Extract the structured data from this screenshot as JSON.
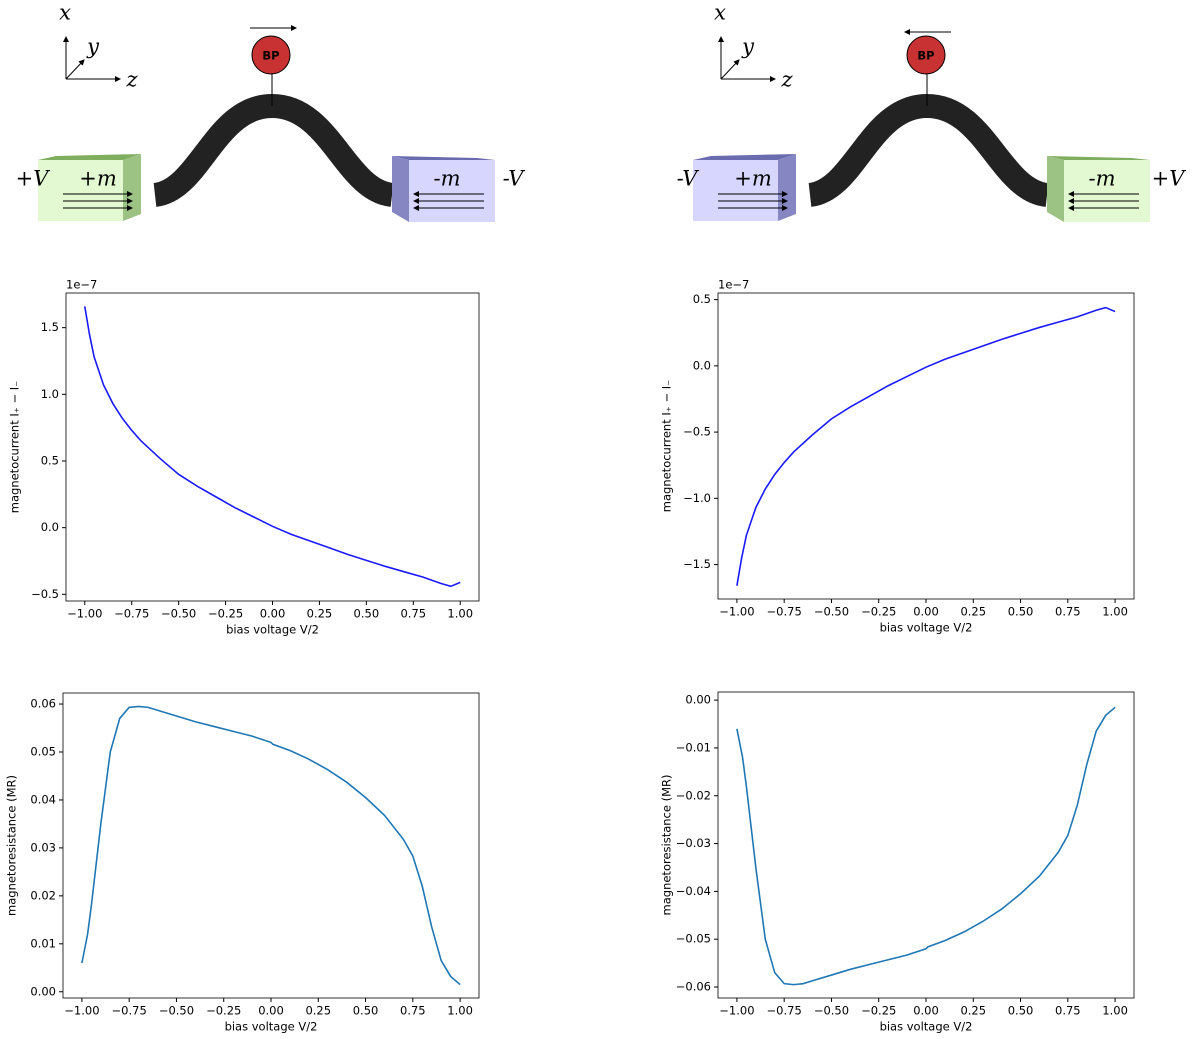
{
  "diagrams": [
    {
      "axis_x": "x",
      "axis_y": "y",
      "axis_z": "z",
      "probe": "BP",
      "left_voltage": "+V",
      "left_moment": "+m",
      "right_moment": "-m",
      "right_voltage": "-V"
    },
    {
      "axis_x": "x",
      "axis_y": "y",
      "axis_z": "z",
      "probe": "BP",
      "left_voltage": "-V",
      "left_moment": "+m",
      "right_moment": "-m",
      "right_voltage": "+V"
    }
  ],
  "chart_data": [
    {
      "type": "line",
      "x_label": "bias voltage V/2",
      "y_label": "magnetocurrent I₊ − I₋",
      "offset_text": "1e−7",
      "color": "#1a1aff",
      "x": [
        -1,
        -0.975,
        -0.95,
        -0.9,
        -0.85,
        -0.8,
        -0.75,
        -0.7,
        -0.6,
        -0.5,
        -0.4,
        -0.3,
        -0.2,
        -0.1,
        0,
        0.1,
        0.2,
        0.3,
        0.4,
        0.5,
        0.6,
        0.7,
        0.8,
        0.9,
        0.95,
        1.0
      ],
      "values": [
        1.66,
        1.45,
        1.28,
        1.07,
        0.93,
        0.82,
        0.73,
        0.65,
        0.52,
        0.4,
        0.31,
        0.23,
        0.15,
        0.08,
        0.01,
        -0.05,
        -0.1,
        -0.15,
        -0.2,
        -0.245,
        -0.29,
        -0.33,
        -0.37,
        -0.42,
        -0.44,
        -0.41
      ],
      "xlim": [
        -1.1,
        1.1
      ],
      "ylim": [
        -0.55,
        1.76
      ],
      "xticks": [
        {
          "value": -1,
          "label": "−1.00"
        },
        {
          "value": -0.75,
          "label": "−0.75"
        },
        {
          "value": -0.5,
          "label": "−0.50"
        },
        {
          "value": -0.25,
          "label": "−0.25"
        },
        {
          "value": 0,
          "label": "0.00"
        },
        {
          "value": 0.25,
          "label": "0.25"
        },
        {
          "value": 0.5,
          "label": "0.50"
        },
        {
          "value": 0.75,
          "label": "0.75"
        },
        {
          "value": 1,
          "label": "1.00"
        }
      ],
      "yticks": [
        {
          "value": -0.5,
          "label": "−0.5"
        },
        {
          "value": 0,
          "label": "0.0"
        },
        {
          "value": 0.5,
          "label": "0.5"
        },
        {
          "value": 1,
          "label": "1.0"
        },
        {
          "value": 1.5,
          "label": "1.5"
        }
      ]
    },
    {
      "type": "line",
      "x_label": "bias voltage V/2",
      "y_label": "magnetocurrent I₊ − I₋",
      "offset_text": "1e−7",
      "color": "#1a1aff",
      "x": [
        -1,
        -0.975,
        -0.95,
        -0.9,
        -0.85,
        -0.8,
        -0.75,
        -0.7,
        -0.6,
        -0.5,
        -0.4,
        -0.3,
        -0.2,
        -0.1,
        0,
        0.1,
        0.2,
        0.3,
        0.4,
        0.5,
        0.6,
        0.7,
        0.8,
        0.9,
        0.95,
        1.0
      ],
      "values": [
        -1.66,
        -1.45,
        -1.28,
        -1.07,
        -0.93,
        -0.82,
        -0.73,
        -0.65,
        -0.52,
        -0.4,
        -0.31,
        -0.23,
        -0.15,
        -0.08,
        -0.01,
        0.05,
        0.1,
        0.15,
        0.2,
        0.245,
        0.29,
        0.33,
        0.37,
        0.42,
        0.44,
        0.41
      ],
      "xlim": [
        -1.1,
        1.1
      ],
      "ylim": [
        -1.76,
        0.55
      ],
      "xticks": [
        {
          "value": -1,
          "label": "−1.00"
        },
        {
          "value": -0.75,
          "label": "−0.75"
        },
        {
          "value": -0.5,
          "label": "−0.50"
        },
        {
          "value": -0.25,
          "label": "−0.25"
        },
        {
          "value": 0,
          "label": "0.00"
        },
        {
          "value": 0.25,
          "label": "0.25"
        },
        {
          "value": 0.5,
          "label": "0.50"
        },
        {
          "value": 0.75,
          "label": "0.75"
        },
        {
          "value": 1,
          "label": "1.00"
        }
      ],
      "yticks": [
        {
          "value": -1.5,
          "label": "−1.5"
        },
        {
          "value": -1,
          "label": "−1.0"
        },
        {
          "value": -0.5,
          "label": "−0.5"
        },
        {
          "value": 0,
          "label": "0.0"
        },
        {
          "value": 0.5,
          "label": "0.5"
        }
      ]
    },
    {
      "type": "line",
      "x_label": "bias voltage V/2",
      "y_label": "magnetoresistance (MR)",
      "color": "#1f77b4",
      "x": [
        -1,
        -0.97,
        -0.95,
        -0.9,
        -0.85,
        -0.8,
        -0.75,
        -0.7,
        -0.65,
        -0.6,
        -0.5,
        -0.4,
        -0.3,
        -0.2,
        -0.1,
        0,
        0.01,
        0.1,
        0.2,
        0.3,
        0.4,
        0.5,
        0.6,
        0.7,
        0.75,
        0.8,
        0.85,
        0.9,
        0.95,
        1.0
      ],
      "values": [
        0.006,
        0.012,
        0.018,
        0.035,
        0.05,
        0.057,
        0.0593,
        0.0595,
        0.0593,
        0.0587,
        0.0575,
        0.0563,
        0.0553,
        0.0543,
        0.0533,
        0.052,
        0.0516,
        0.0503,
        0.0485,
        0.0463,
        0.0437,
        0.0405,
        0.0368,
        0.0318,
        0.0283,
        0.022,
        0.0135,
        0.0065,
        0.0032,
        0.0015
      ],
      "xlim": [
        -1.1,
        1.1
      ],
      "ylim": [
        -0.0013,
        0.0623
      ],
      "xticks": [
        {
          "value": -1,
          "label": "−1.00"
        },
        {
          "value": -0.75,
          "label": "−0.75"
        },
        {
          "value": -0.5,
          "label": "−0.50"
        },
        {
          "value": -0.25,
          "label": "−0.25"
        },
        {
          "value": 0,
          "label": "0.00"
        },
        {
          "value": 0.25,
          "label": "0.25"
        },
        {
          "value": 0.5,
          "label": "0.50"
        },
        {
          "value": 0.75,
          "label": "0.75"
        },
        {
          "value": 1,
          "label": "1.00"
        }
      ],
      "yticks": [
        {
          "value": 0,
          "label": "0.00"
        },
        {
          "value": 0.01,
          "label": "0.01"
        },
        {
          "value": 0.02,
          "label": "0.02"
        },
        {
          "value": 0.03,
          "label": "0.03"
        },
        {
          "value": 0.04,
          "label": "0.04"
        },
        {
          "value": 0.05,
          "label": "0.05"
        },
        {
          "value": 0.06,
          "label": "0.06"
        }
      ]
    },
    {
      "type": "line",
      "x_label": "bias voltage V/2",
      "y_label": "magnetoresistance (MR)",
      "color": "#1f77b4",
      "x": [
        -1,
        -0.97,
        -0.95,
        -0.9,
        -0.85,
        -0.8,
        -0.75,
        -0.7,
        -0.65,
        -0.6,
        -0.5,
        -0.4,
        -0.3,
        -0.2,
        -0.1,
        0,
        0.01,
        0.1,
        0.2,
        0.3,
        0.4,
        0.5,
        0.6,
        0.7,
        0.75,
        0.8,
        0.85,
        0.9,
        0.95,
        1.0
      ],
      "values": [
        -0.006,
        -0.012,
        -0.018,
        -0.035,
        -0.05,
        -0.057,
        -0.0593,
        -0.0595,
        -0.0593,
        -0.0587,
        -0.0575,
        -0.0563,
        -0.0553,
        -0.0543,
        -0.0533,
        -0.052,
        -0.0516,
        -0.0503,
        -0.0485,
        -0.0463,
        -0.0437,
        -0.0405,
        -0.0368,
        -0.0318,
        -0.0283,
        -0.022,
        -0.0135,
        -0.0065,
        -0.0032,
        -0.0015
      ],
      "xlim": [
        -1.1,
        1.1
      ],
      "ylim": [
        -0.0623,
        0.0017
      ],
      "xticks": [
        {
          "value": -1,
          "label": "−1.00"
        },
        {
          "value": -0.75,
          "label": "−0.75"
        },
        {
          "value": -0.5,
          "label": "−0.50"
        },
        {
          "value": -0.25,
          "label": "−0.25"
        },
        {
          "value": 0,
          "label": "0.00"
        },
        {
          "value": 0.25,
          "label": "0.25"
        },
        {
          "value": 0.5,
          "label": "0.50"
        },
        {
          "value": 0.75,
          "label": "0.75"
        },
        {
          "value": 1,
          "label": "1.00"
        }
      ],
      "yticks": [
        {
          "value": -0.06,
          "label": "−0.06"
        },
        {
          "value": -0.05,
          "label": "−0.05"
        },
        {
          "value": -0.04,
          "label": "−0.04"
        },
        {
          "value": -0.03,
          "label": "−0.03"
        },
        {
          "value": -0.02,
          "label": "−0.02"
        },
        {
          "value": -0.01,
          "label": "−0.01"
        },
        {
          "value": 0,
          "label": "0.00"
        }
      ]
    }
  ]
}
